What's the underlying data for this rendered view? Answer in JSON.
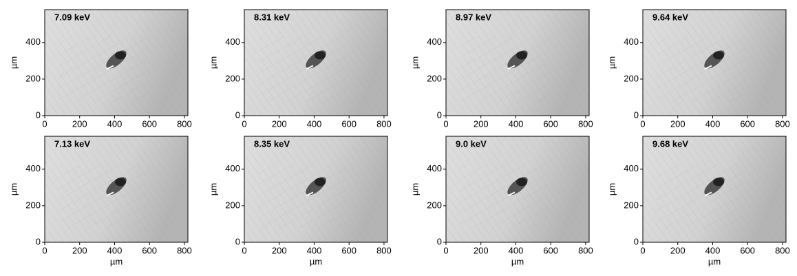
{
  "chart_data": [
    {
      "type": "image",
      "title": "7.09 keV",
      "ylabel": "µm",
      "xlim": [
        0,
        820
      ],
      "ylim": [
        0,
        580
      ],
      "xticks": [
        0,
        200,
        400,
        600,
        800
      ],
      "yticks": [
        0,
        200,
        400
      ]
    },
    {
      "type": "image",
      "title": "8.31 keV",
      "ylabel": "µm",
      "xlim": [
        0,
        820
      ],
      "ylim": [
        0,
        580
      ],
      "xticks": [
        0,
        200,
        400,
        600,
        800
      ],
      "yticks": [
        0,
        200,
        400
      ]
    },
    {
      "type": "image",
      "title": "8.97 keV",
      "ylabel": "µm",
      "xlim": [
        0,
        820
      ],
      "ylim": [
        0,
        580
      ],
      "xticks": [
        0,
        200,
        400,
        600,
        800
      ],
      "yticks": [
        0,
        200,
        400
      ]
    },
    {
      "type": "image",
      "title": "9.64 keV",
      "ylabel": "µm",
      "xlim": [
        0,
        820
      ],
      "ylim": [
        0,
        580
      ],
      "xticks": [
        0,
        200,
        400,
        600,
        800
      ],
      "yticks": [
        0,
        200,
        400
      ]
    },
    {
      "type": "image",
      "title": "7.13 keV",
      "xlabel": "µm",
      "ylabel": "µm",
      "xlim": [
        0,
        820
      ],
      "ylim": [
        0,
        580
      ],
      "xticks": [
        0,
        200,
        400,
        600,
        800
      ],
      "yticks": [
        0,
        200,
        400
      ]
    },
    {
      "type": "image",
      "title": "8.35 keV",
      "xlabel": "µm",
      "ylabel": "µm",
      "xlim": [
        0,
        820
      ],
      "ylim": [
        0,
        580
      ],
      "xticks": [
        0,
        200,
        400,
        600,
        800
      ],
      "yticks": [
        0,
        200,
        400
      ]
    },
    {
      "type": "image",
      "title": "9.0 keV",
      "xlabel": "µm",
      "ylabel": "µm",
      "xlim": [
        0,
        820
      ],
      "ylim": [
        0,
        580
      ],
      "xticks": [
        0,
        200,
        400,
        600,
        800
      ],
      "yticks": [
        0,
        200,
        400
      ]
    },
    {
      "type": "image",
      "title": "9.68 keV",
      "xlabel": "µm",
      "ylabel": "µm",
      "xlim": [
        0,
        820
      ],
      "ylim": [
        0,
        580
      ],
      "xticks": [
        0,
        200,
        400,
        600,
        800
      ],
      "yticks": [
        0,
        200,
        400
      ]
    }
  ]
}
